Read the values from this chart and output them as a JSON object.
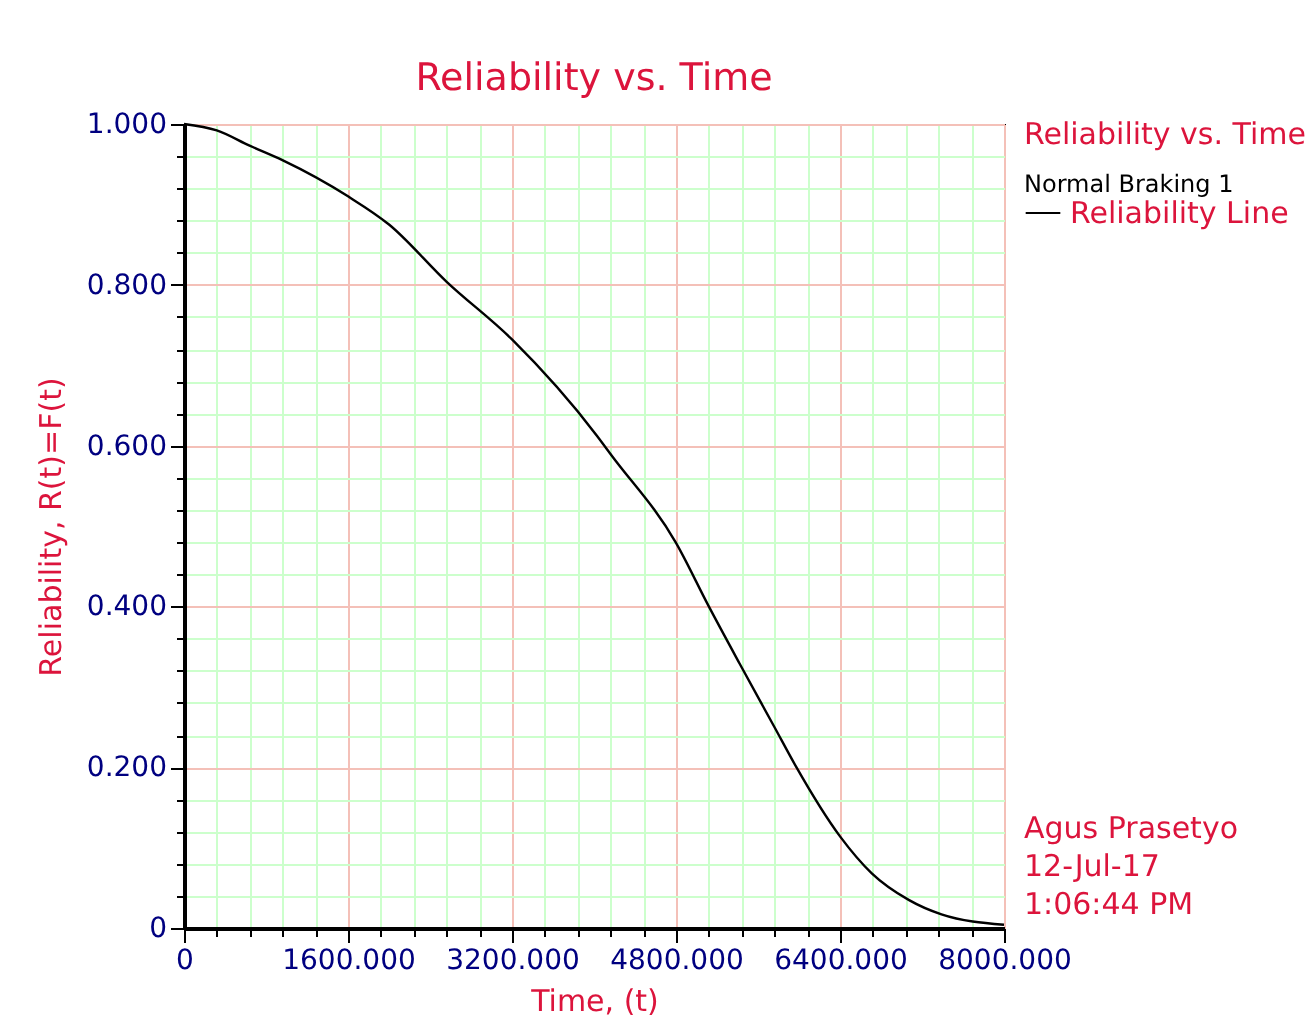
{
  "chart_data": {
    "type": "line",
    "title": "Reliability vs. Time",
    "xlabel": "Time, (t)",
    "ylabel": "Reliability, R(t)=F(t)",
    "legend_title": "Reliability vs. Time",
    "x": [
      0,
      320,
      640,
      960,
      1600,
      2000,
      2560,
      3200,
      4030,
      4170,
      4800,
      5120,
      5420,
      5760,
      5970,
      6400,
      6710,
      7070,
      7390,
      8000
    ],
    "series": [
      {
        "name": "Reliability Line",
        "color": "#000000",
        "values": [
          1.0,
          0.992,
          0.973,
          0.955,
          0.91,
          0.875,
          0.804,
          0.732,
          0.612,
          0.588,
          0.479,
          0.4,
          0.329,
          0.25,
          0.201,
          0.114,
          0.068,
          0.035,
          0.017,
          0.004
        ]
      }
    ],
    "xlim": [
      0,
      8000
    ],
    "ylim": [
      0,
      1
    ],
    "xticks": [
      0,
      {
        "value": 320,
        "label": null
      },
      {
        "value": 640,
        "label": null
      },
      {
        "value": 960,
        "label": null
      },
      {
        "value": 1280,
        "label": null
      },
      {
        "value": 1600,
        "label": "1600.000"
      },
      {
        "value": 1920,
        "label": null
      },
      {
        "value": 2240,
        "label": null
      },
      {
        "value": 2560,
        "label": null
      },
      {
        "value": 2880,
        "label": null
      },
      {
        "value": 3200,
        "label": "3200.000"
      },
      {
        "value": 3520,
        "label": null
      },
      {
        "value": 3840,
        "label": null
      },
      {
        "value": 4160,
        "label": null
      },
      {
        "value": 4480,
        "label": null
      },
      {
        "value": 4800,
        "label": "4800.000"
      },
      {
        "value": 5120,
        "label": null
      },
      {
        "value": 5440,
        "label": null
      },
      {
        "value": 5760,
        "label": null
      },
      {
        "value": 6080,
        "label": null
      },
      {
        "value": 6400,
        "label": "6400.000"
      },
      {
        "value": 6720,
        "label": null
      },
      {
        "value": 7040,
        "label": null
      },
      {
        "value": 7360,
        "label": null
      },
      {
        "value": 7680,
        "label": null
      },
      {
        "value": 8000,
        "label": "8000.000"
      }
    ],
    "yticks": [
      0,
      {
        "value": 0.04,
        "label": null
      },
      {
        "value": 0.08,
        "label": null
      },
      {
        "value": 0.12,
        "label": null
      },
      {
        "value": 0.16,
        "label": null
      },
      {
        "value": 0.2,
        "label": "0.200"
      },
      {
        "value": 0.24,
        "label": null
      },
      {
        "value": 0.28,
        "label": null
      },
      {
        "value": 0.32,
        "label": null
      },
      {
        "value": 0.36,
        "label": null
      },
      {
        "value": 0.4,
        "label": "0.400"
      },
      {
        "value": 0.44,
        "label": null
      },
      {
        "value": 0.48,
        "label": null
      },
      {
        "value": 0.52,
        "label": null
      },
      {
        "value": 0.56,
        "label": null
      },
      {
        "value": 0.6,
        "label": "0.600"
      },
      {
        "value": 0.64,
        "label": null
      },
      {
        "value": 0.68,
        "label": null
      },
      {
        "value": 0.72,
        "label": null
      },
      {
        "value": 0.76,
        "label": null
      },
      {
        "value": 0.8,
        "label": "0.800"
      },
      {
        "value": 0.84,
        "label": null
      },
      {
        "value": 0.88,
        "label": null
      },
      {
        "value": 0.92,
        "label": null
      },
      {
        "value": 0.96,
        "label": null
      },
      {
        "value": 1,
        "label": "1.000"
      }
    ],
    "grid": true,
    "legend": "right",
    "annotations": [
      "Normal Braking 1",
      "Agus Prasetyo",
      "12-Jul-17",
      "1:06:44 PM"
    ]
  }
}
